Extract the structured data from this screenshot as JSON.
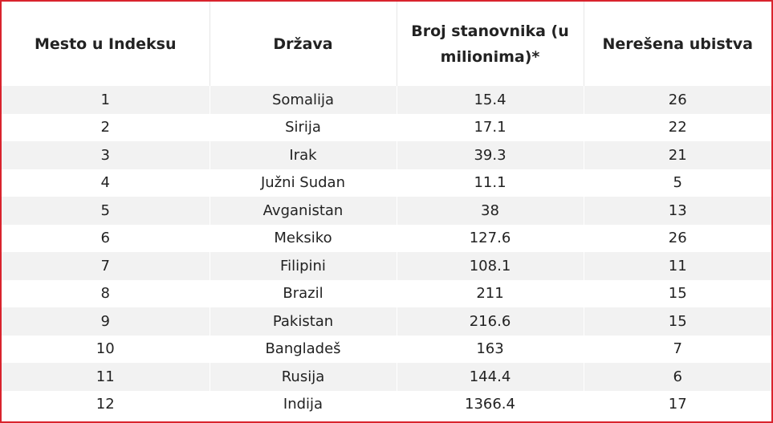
{
  "table": {
    "header": [
      "Mesto u Indeksu",
      "Država",
      "Broj stanovnika (u milionima)*",
      "Nerešena ubistva"
    ],
    "rows": [
      [
        "1",
        "Somalija",
        "15.4",
        "26"
      ],
      [
        "2",
        "Sirija",
        "17.1",
        "22"
      ],
      [
        "3",
        "Irak",
        "39.3",
        "21"
      ],
      [
        "4",
        "Južni Sudan",
        "11.1",
        "5"
      ],
      [
        "5",
        "Avganistan",
        "38",
        "13"
      ],
      [
        "6",
        "Meksiko",
        "127.6",
        "26"
      ],
      [
        "7",
        "Filipini",
        "108.1",
        "11"
      ],
      [
        "8",
        "Brazil",
        "211",
        "15"
      ],
      [
        "9",
        "Pakistan",
        "216.6",
        "15"
      ],
      [
        "10",
        "Bangladeš",
        "163",
        "7"
      ],
      [
        "11",
        "Rusija",
        "144.4",
        "6"
      ],
      [
        "12",
        "Indija",
        "1366.4",
        "17"
      ]
    ]
  }
}
